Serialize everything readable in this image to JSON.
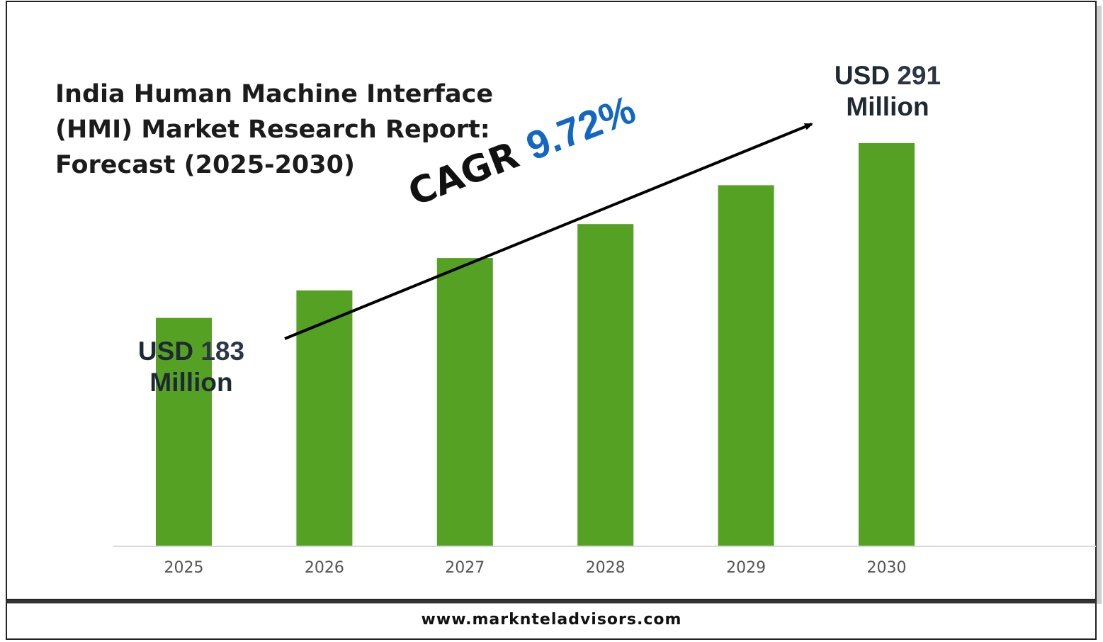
{
  "chart_data": {
    "type": "bar",
    "title_lines": [
      "India Human Machine Interface",
      "(HMI) Market Research Report:",
      "Forecast (2025-2030)"
    ],
    "categories": [
      "2025",
      "2026",
      "2027",
      "2028",
      "2029",
      "2030"
    ],
    "values": [
      183,
      200,
      220,
      241,
      265,
      291
    ],
    "unit": "USD Million",
    "ylim": [
      0,
      320
    ],
    "bar_color": "#55a124",
    "grid": false,
    "annotations": {
      "start": {
        "prefix": "USD ",
        "value": "183",
        "suffix": "Million"
      },
      "end": {
        "prefix": "USD ",
        "value": "291",
        "suffix": "Million"
      },
      "cagr": {
        "label": "CAGR ",
        "value": "9.72%"
      }
    }
  },
  "footer": {
    "website": "www.marknteladvisors.com"
  },
  "colors": {
    "accent": "#1266c4",
    "text": "#1f2933",
    "bar": "#55a124"
  }
}
